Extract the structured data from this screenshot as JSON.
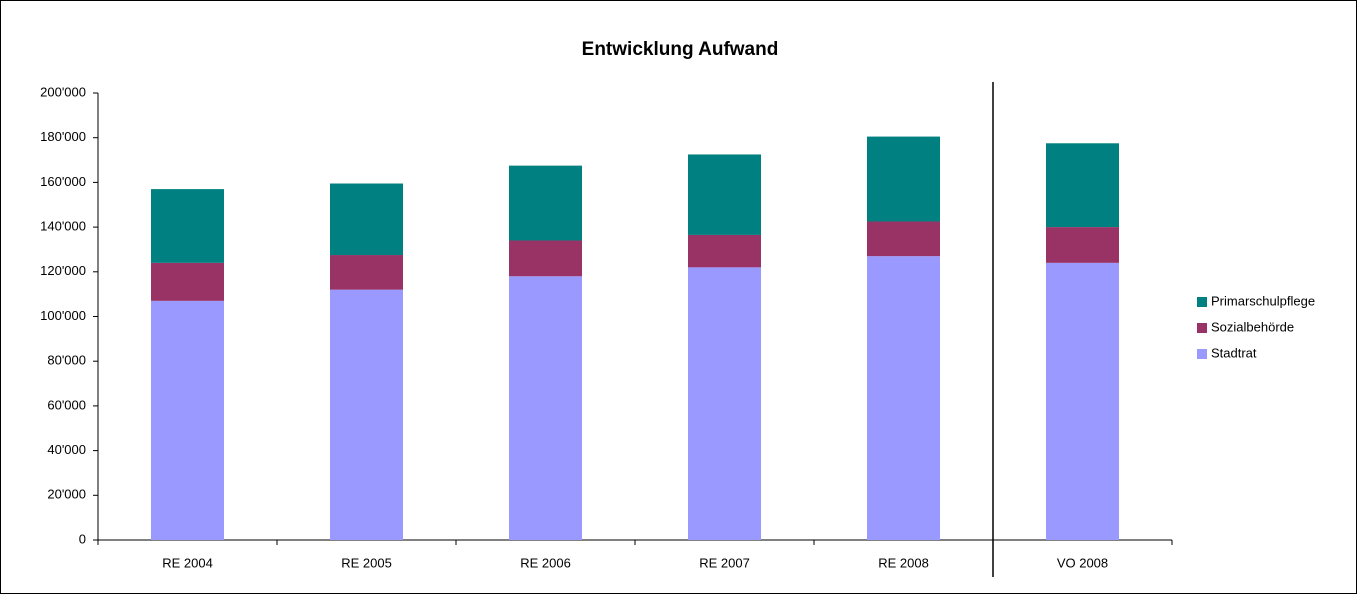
{
  "chart_data": {
    "type": "stacked_bar",
    "title": "Entwicklung Aufwand",
    "categories": [
      "RE 2004",
      "RE 2005",
      "RE 2006",
      "RE 2007",
      "RE 2008",
      "VO 2008"
    ],
    "series": [
      {
        "name": "Stadtrat",
        "color": "#9999ff",
        "values": [
          107000,
          112000,
          118000,
          122000,
          127000,
          124000
        ]
      },
      {
        "name": "Sozialbehörde",
        "color": "#993366",
        "values": [
          17000,
          15500,
          16000,
          14500,
          15500,
          16000
        ]
      },
      {
        "name": "Primarschulpflege",
        "color": "#008080",
        "values": [
          33000,
          32000,
          33500,
          36000,
          38000,
          37500
        ]
      }
    ],
    "ylim": [
      0,
      200000
    ],
    "yticks": [
      0,
      {
        "value": 20000,
        "label": "20'000"
      },
      {
        "value": 40000,
        "label": "40'000"
      },
      {
        "value": 60000,
        "label": "60'000"
      },
      {
        "value": 80000,
        "label": "80'000"
      },
      {
        "value": 100000,
        "label": "100'000"
      },
      {
        "value": 120000,
        "label": "120'000"
      },
      {
        "value": 140000,
        "label": "140'000"
      },
      {
        "value": 160000,
        "label": "160'000"
      },
      {
        "value": 180000,
        "label": "180'000"
      },
      {
        "value": 200000,
        "label": "200'000"
      }
    ],
    "legend": "right"
  }
}
